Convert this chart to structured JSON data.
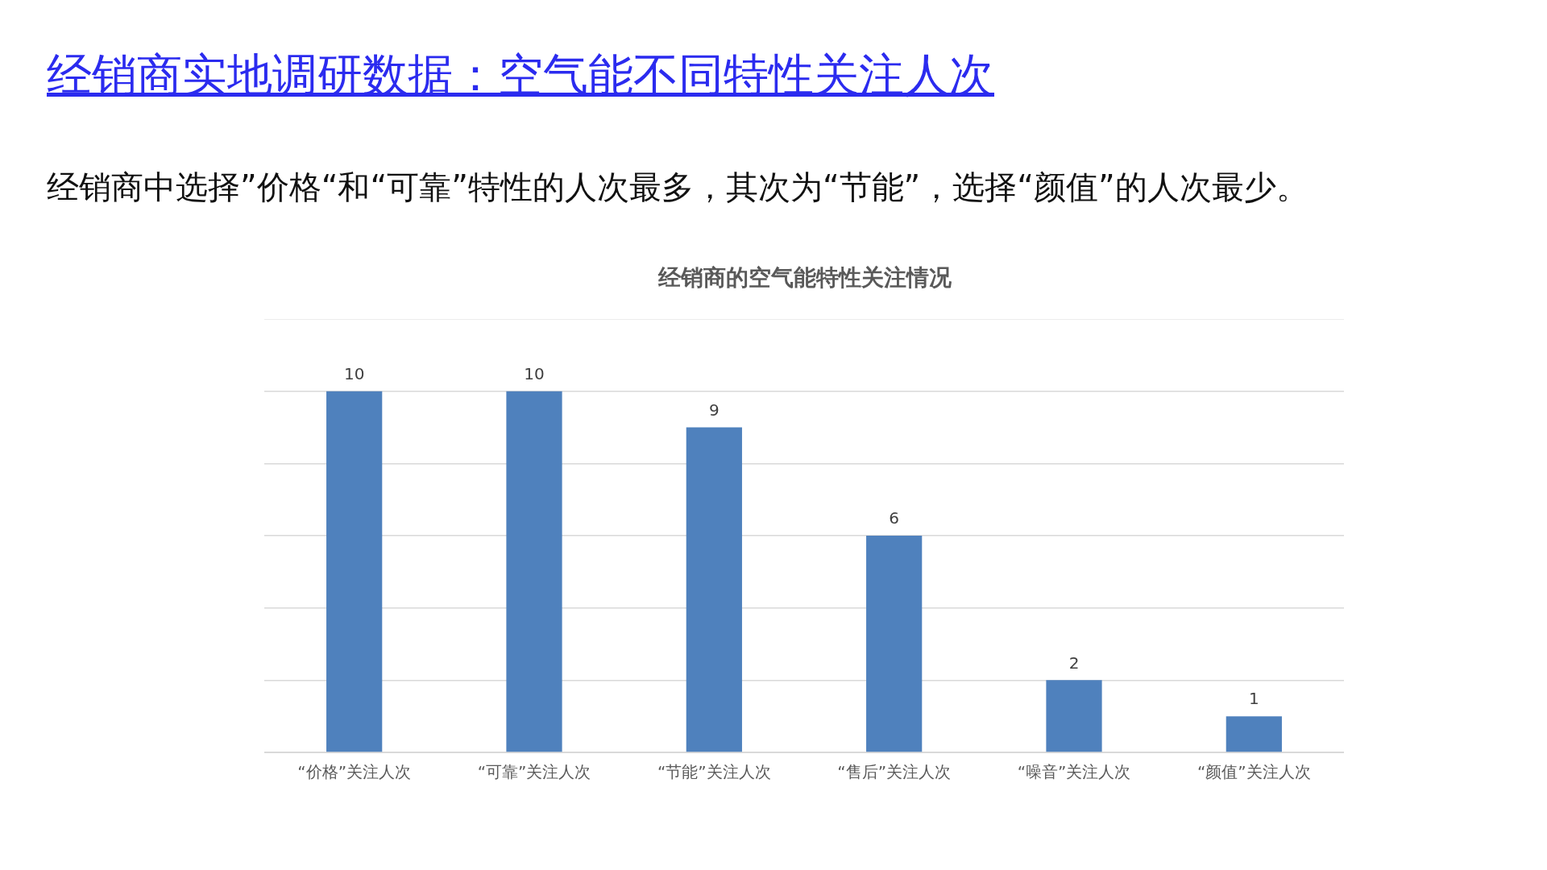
{
  "chart_data": {
    "type": "bar",
    "title": "经销商实地调研数据：空气能不同特性关注人次",
    "subtitle": "经销商中选择”价格“和“可靠”特性的人次最多，其次为“节能”，选择“颜值”的人次最少。",
    "annotations": [
      "经销商的空气能特性关注情况"
    ],
    "categories": [
      "“价格”关注人次",
      "“可靠”关注人次",
      "“节能”关注人次",
      "“售后”关注人次",
      "“噪音”关注人次",
      "“颜值”关注人次"
    ],
    "values": [
      10,
      10,
      9,
      6,
      2,
      1
    ],
    "color": "#4f81bd",
    "data_labels": true,
    "ylim": [
      0,
      12
    ],
    "yticks": [
      {
        "value": 0,
        "label": null
      },
      {
        "value": 2,
        "label": null
      },
      {
        "value": 4,
        "label": null
      },
      {
        "value": 6,
        "label": null
      },
      {
        "value": 8,
        "label": null
      },
      {
        "value": 10,
        "label": null
      },
      {
        "value": 12,
        "label": null
      }
    ],
    "grid": "y",
    "tick_labels": "x",
    "legend": false
  }
}
